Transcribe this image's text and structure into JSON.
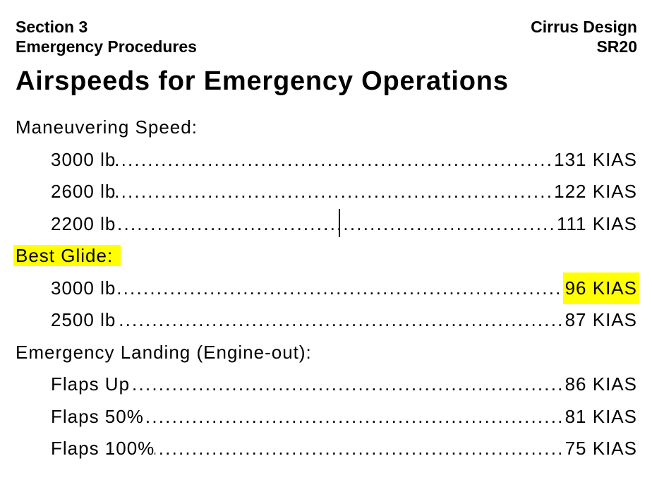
{
  "header": {
    "section_label": "Section 3",
    "section_name": "Emergency Procedures",
    "manufacturer": "Cirrus Design",
    "model": "SR20"
  },
  "title": "Airspeeds for Emergency Operations",
  "highlight_color": "#ffff00",
  "unit": "KIAS",
  "sections": [
    {
      "heading": "Maneuvering Speed:",
      "highlighted": false,
      "rows": [
        {
          "label": "3000 lb",
          "value": "131 KIAS",
          "value_highlighted": false,
          "has_caret": false
        },
        {
          "label": "2600 lb",
          "value": "122 KIAS",
          "value_highlighted": false,
          "has_caret": false
        },
        {
          "label": "2200 lb",
          "value": "111 KIAS",
          "value_highlighted": false,
          "has_caret": true
        }
      ]
    },
    {
      "heading": "Best Glide:",
      "highlighted": true,
      "rows": [
        {
          "label": "3000 lb",
          "value": "96 KIAS",
          "value_highlighted": true,
          "has_caret": false
        },
        {
          "label": "2500 lb",
          "value": "87 KIAS",
          "value_highlighted": false,
          "has_caret": false
        }
      ]
    },
    {
      "heading": "Emergency Landing (Engine-out):",
      "highlighted": false,
      "rows": [
        {
          "label": "Flaps Up",
          "value": "86 KIAS",
          "value_highlighted": false,
          "has_caret": false
        },
        {
          "label": "Flaps 50%",
          "value": "81 KIAS",
          "value_highlighted": false,
          "has_caret": false
        },
        {
          "label": "Flaps 100%",
          "value": "75 KIAS",
          "value_highlighted": false,
          "has_caret": false
        }
      ]
    }
  ],
  "text_cursor": {
    "visible": true,
    "in_row_label": "2200 lb"
  }
}
